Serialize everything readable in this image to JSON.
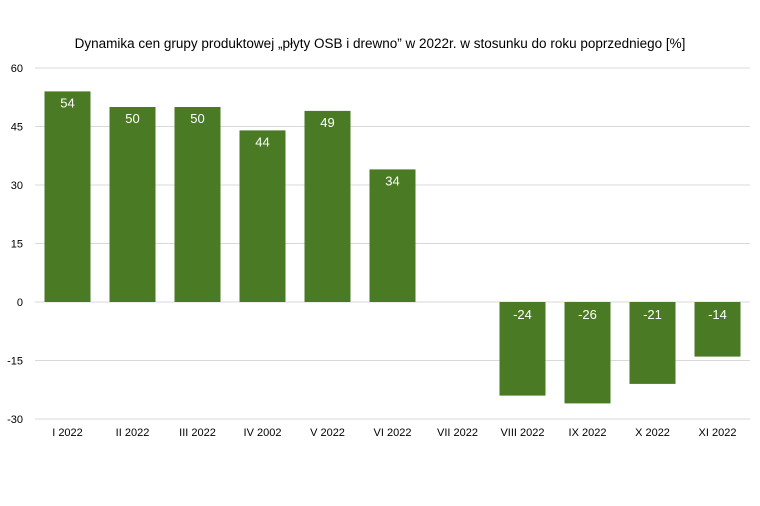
{
  "chart_data": {
    "type": "bar",
    "title": "Dynamika cen grupy produktowej „płyty OSB i drewno” w 2022r. w stosunku do roku poprzedniego [%]",
    "xlabel": "",
    "ylabel": "",
    "categories": [
      "I 2022",
      "II 2022",
      "III 2022",
      "IV 2002",
      "V 2022",
      "VI 2022",
      "VII 2022",
      "VIII 2022",
      "IX 2022",
      "X 2022",
      "XI 2022"
    ],
    "values": [
      54,
      50,
      50,
      44,
      49,
      34,
      null,
      -24,
      -26,
      -21,
      -14
    ],
    "data_labels": [
      "54",
      "50",
      "50",
      "44",
      "49",
      "34",
      "",
      "-24",
      "-26",
      "-21",
      "-14"
    ],
    "ylim": [
      -30,
      60
    ],
    "yticks": [
      60,
      45,
      30,
      15,
      0,
      -15,
      -30
    ],
    "grid": true,
    "legend": "none",
    "colors": {
      "bar": "#4a7a23",
      "grid": "#d9d9d9",
      "label": "#ffffff"
    }
  }
}
